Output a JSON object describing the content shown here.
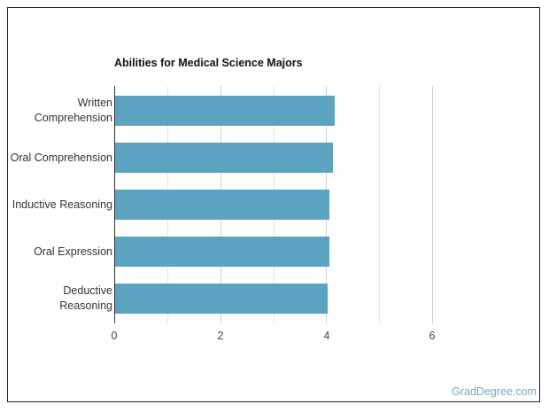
{
  "chart_data": {
    "type": "bar",
    "orientation": "horizontal",
    "title": "Abilities for Medical Science Majors",
    "categories": [
      "Written Comprehension",
      "Oral Comprehension",
      "Inductive Reasoning",
      "Oral Expression",
      "Deductive Reasoning"
    ],
    "category_lines": [
      [
        "Written",
        "Comprehension"
      ],
      [
        "Oral Comprehension"
      ],
      [
        "Inductive Reasoning"
      ],
      [
        "Oral Expression"
      ],
      [
        "Deductive",
        "Reasoning"
      ]
    ],
    "values": [
      4.17,
      4.13,
      4.07,
      4.07,
      4.03
    ],
    "xlabel": "",
    "ylabel": "",
    "xlim": [
      0,
      6
    ],
    "xticks": [
      "0",
      "2",
      "4",
      "6"
    ],
    "grid": true,
    "legend": null,
    "bar_color": "#5ba3c0"
  },
  "watermark": "GradDegree.com"
}
